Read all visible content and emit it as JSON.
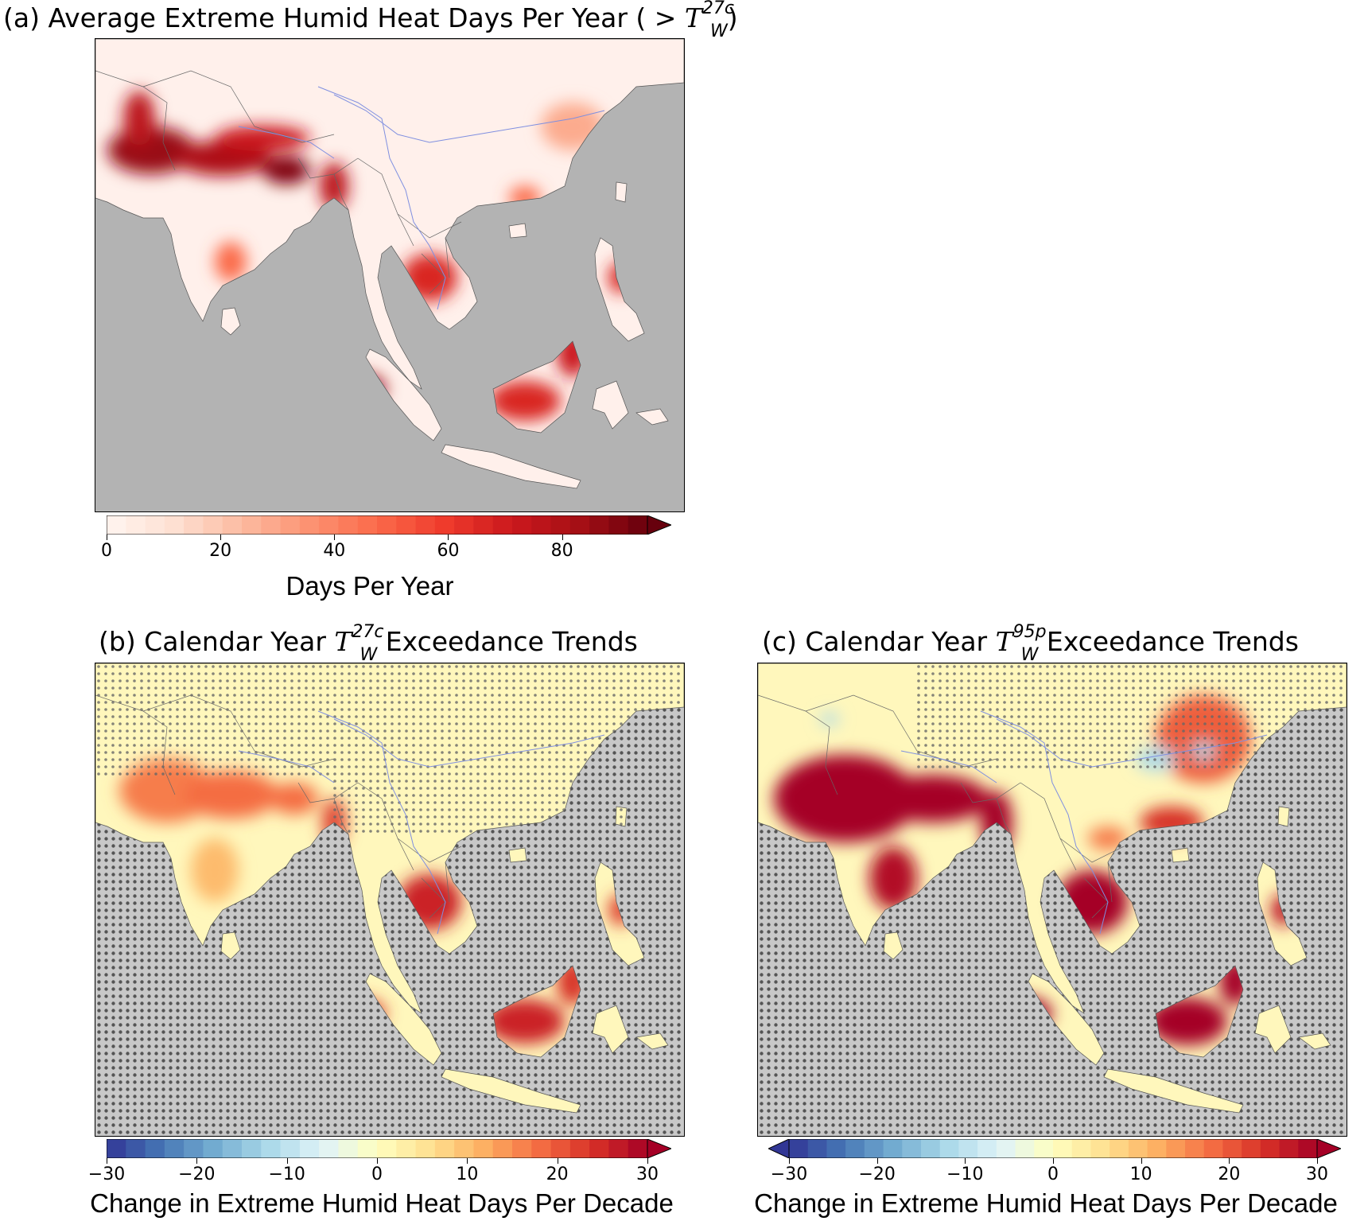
{
  "panels": [
    {
      "id": "a",
      "title_prefix": "(a) Average Extreme Humid Heat Days Per Year ( > ",
      "title_sym": "T",
      "title_sup": "27c",
      "title_sub": "W",
      "title_suffix": ")",
      "colorbar": {
        "ticks": [
          "0",
          "20",
          "40",
          "60",
          "80"
        ],
        "tick_values": [
          0,
          20,
          40,
          60,
          80
        ],
        "range": [
          0,
          95
        ],
        "extend": "max",
        "colormap": [
          "#fff5f0",
          "#fee0d2",
          "#fcbba1",
          "#fc9272",
          "#fb6a4a",
          "#ef3b2c",
          "#cb181d",
          "#a50f15",
          "#67000d"
        ],
        "label": "Days Per Year"
      },
      "stippling": false,
      "ocean_color": "#b3b3b3",
      "land_low_color": "#fff0eb"
    },
    {
      "id": "b",
      "title_prefix": "(b) Calendar Year ",
      "title_sym": "T",
      "title_sup": "27c",
      "title_sub": "W",
      "title_suffix": " Exceedance Trends",
      "colorbar": {
        "ticks": [
          "−30",
          "−20",
          "−10",
          "0",
          "10",
          "20",
          "30"
        ],
        "tick_values": [
          -30,
          -20,
          -10,
          0,
          10,
          20,
          30
        ],
        "range": [
          -30,
          30
        ],
        "extend": "max",
        "colormap": [
          "#313695",
          "#4575b4",
          "#74add1",
          "#abd9e9",
          "#e0f3f8",
          "#ffffbf",
          "#fee090",
          "#fdae61",
          "#f46d43",
          "#d73027",
          "#a50026"
        ],
        "label": "Change in Extreme Humid Heat Days Per Decade"
      },
      "stippling": true,
      "ocean_color": "#8c8c8c",
      "land_low_color": "#fff7bc"
    },
    {
      "id": "c",
      "title_prefix": "(c) Calendar Year ",
      "title_sym": "T",
      "title_sup": "95p",
      "title_sub": "W",
      "title_suffix": " Exceedance Trends",
      "colorbar": {
        "ticks": [
          "−30",
          "−20",
          "−10",
          "0",
          "10",
          "20",
          "30"
        ],
        "tick_values": [
          -30,
          -20,
          -10,
          0,
          10,
          20,
          30
        ],
        "range": [
          -30,
          30
        ],
        "extend": "both",
        "colormap": [
          "#313695",
          "#4575b4",
          "#74add1",
          "#abd9e9",
          "#e0f3f8",
          "#ffffbf",
          "#fee090",
          "#fdae61",
          "#f46d43",
          "#d73027",
          "#a50026"
        ],
        "label": "Change in Extreme Humid Heat Days Per Decade"
      },
      "stippling": true,
      "ocean_color": "#8c8c8c",
      "land_low_color": "#fff7bc"
    }
  ]
}
